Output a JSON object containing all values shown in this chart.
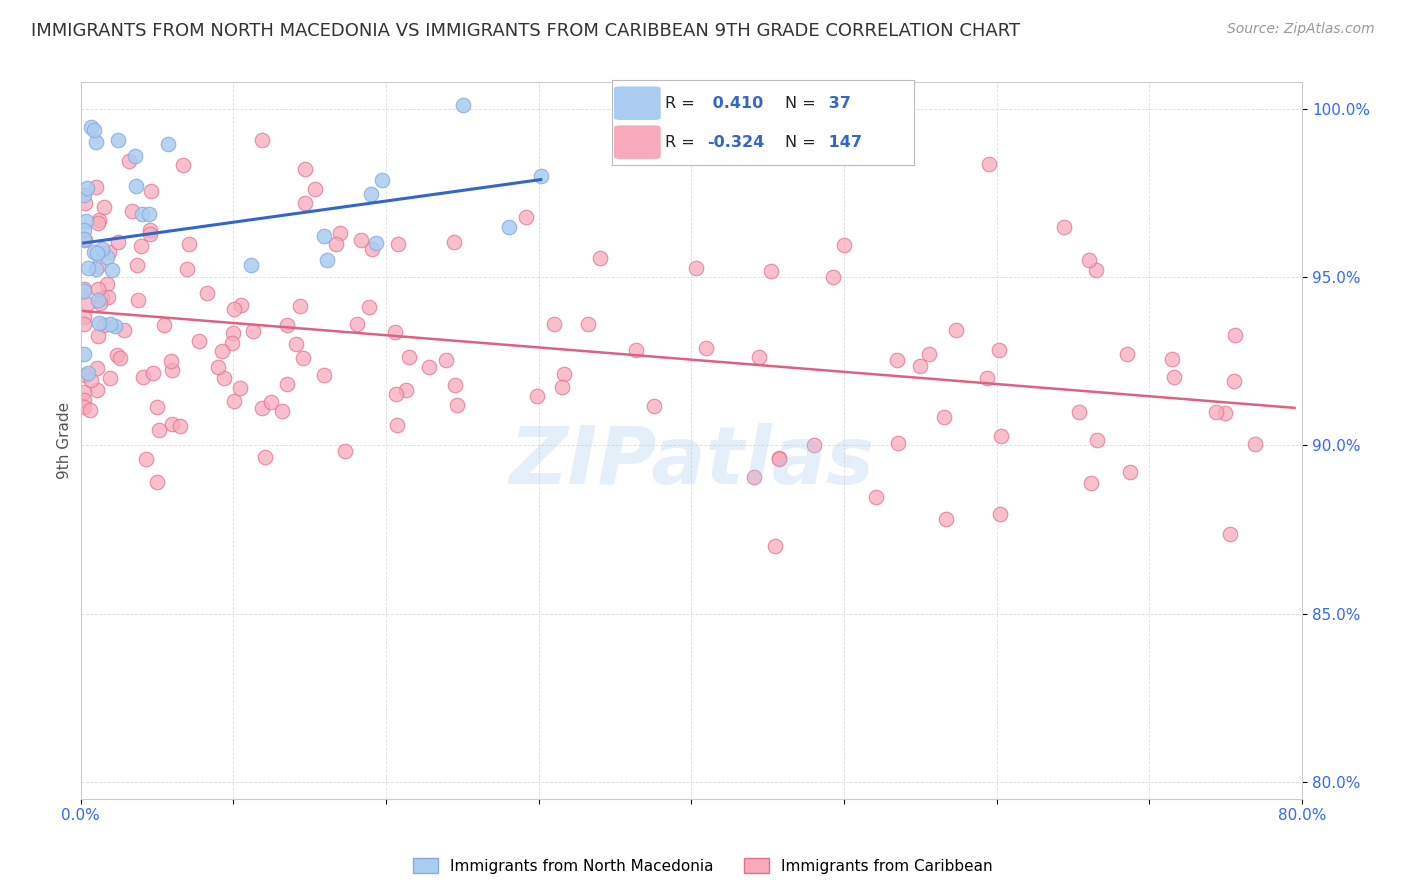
{
  "title": "IMMIGRANTS FROM NORTH MACEDONIA VS IMMIGRANTS FROM CARIBBEAN 9TH GRADE CORRELATION CHART",
  "source": "Source: ZipAtlas.com",
  "ylabel": "9th Grade",
  "xlim": [
    0.0,
    0.8
  ],
  "ylim": [
    0.795,
    1.008
  ],
  "blue_R": 0.41,
  "blue_N": 37,
  "pink_R": -0.324,
  "pink_N": 147,
  "blue_color": "#AACCF0",
  "blue_edge_color": "#88AADD",
  "blue_line_color": "#3366CC",
  "pink_color": "#F8AABC",
  "pink_edge_color": "#E07090",
  "pink_line_color": "#E06080",
  "watermark": "ZIPatlas",
  "title_fontsize": 13,
  "tick_label_color": "#3366FF",
  "grid_color": "#DDDDDD",
  "legend_R_color": "#3366CC",
  "background_color": "#FFFFFF",
  "legend_text_color": "#000000"
}
